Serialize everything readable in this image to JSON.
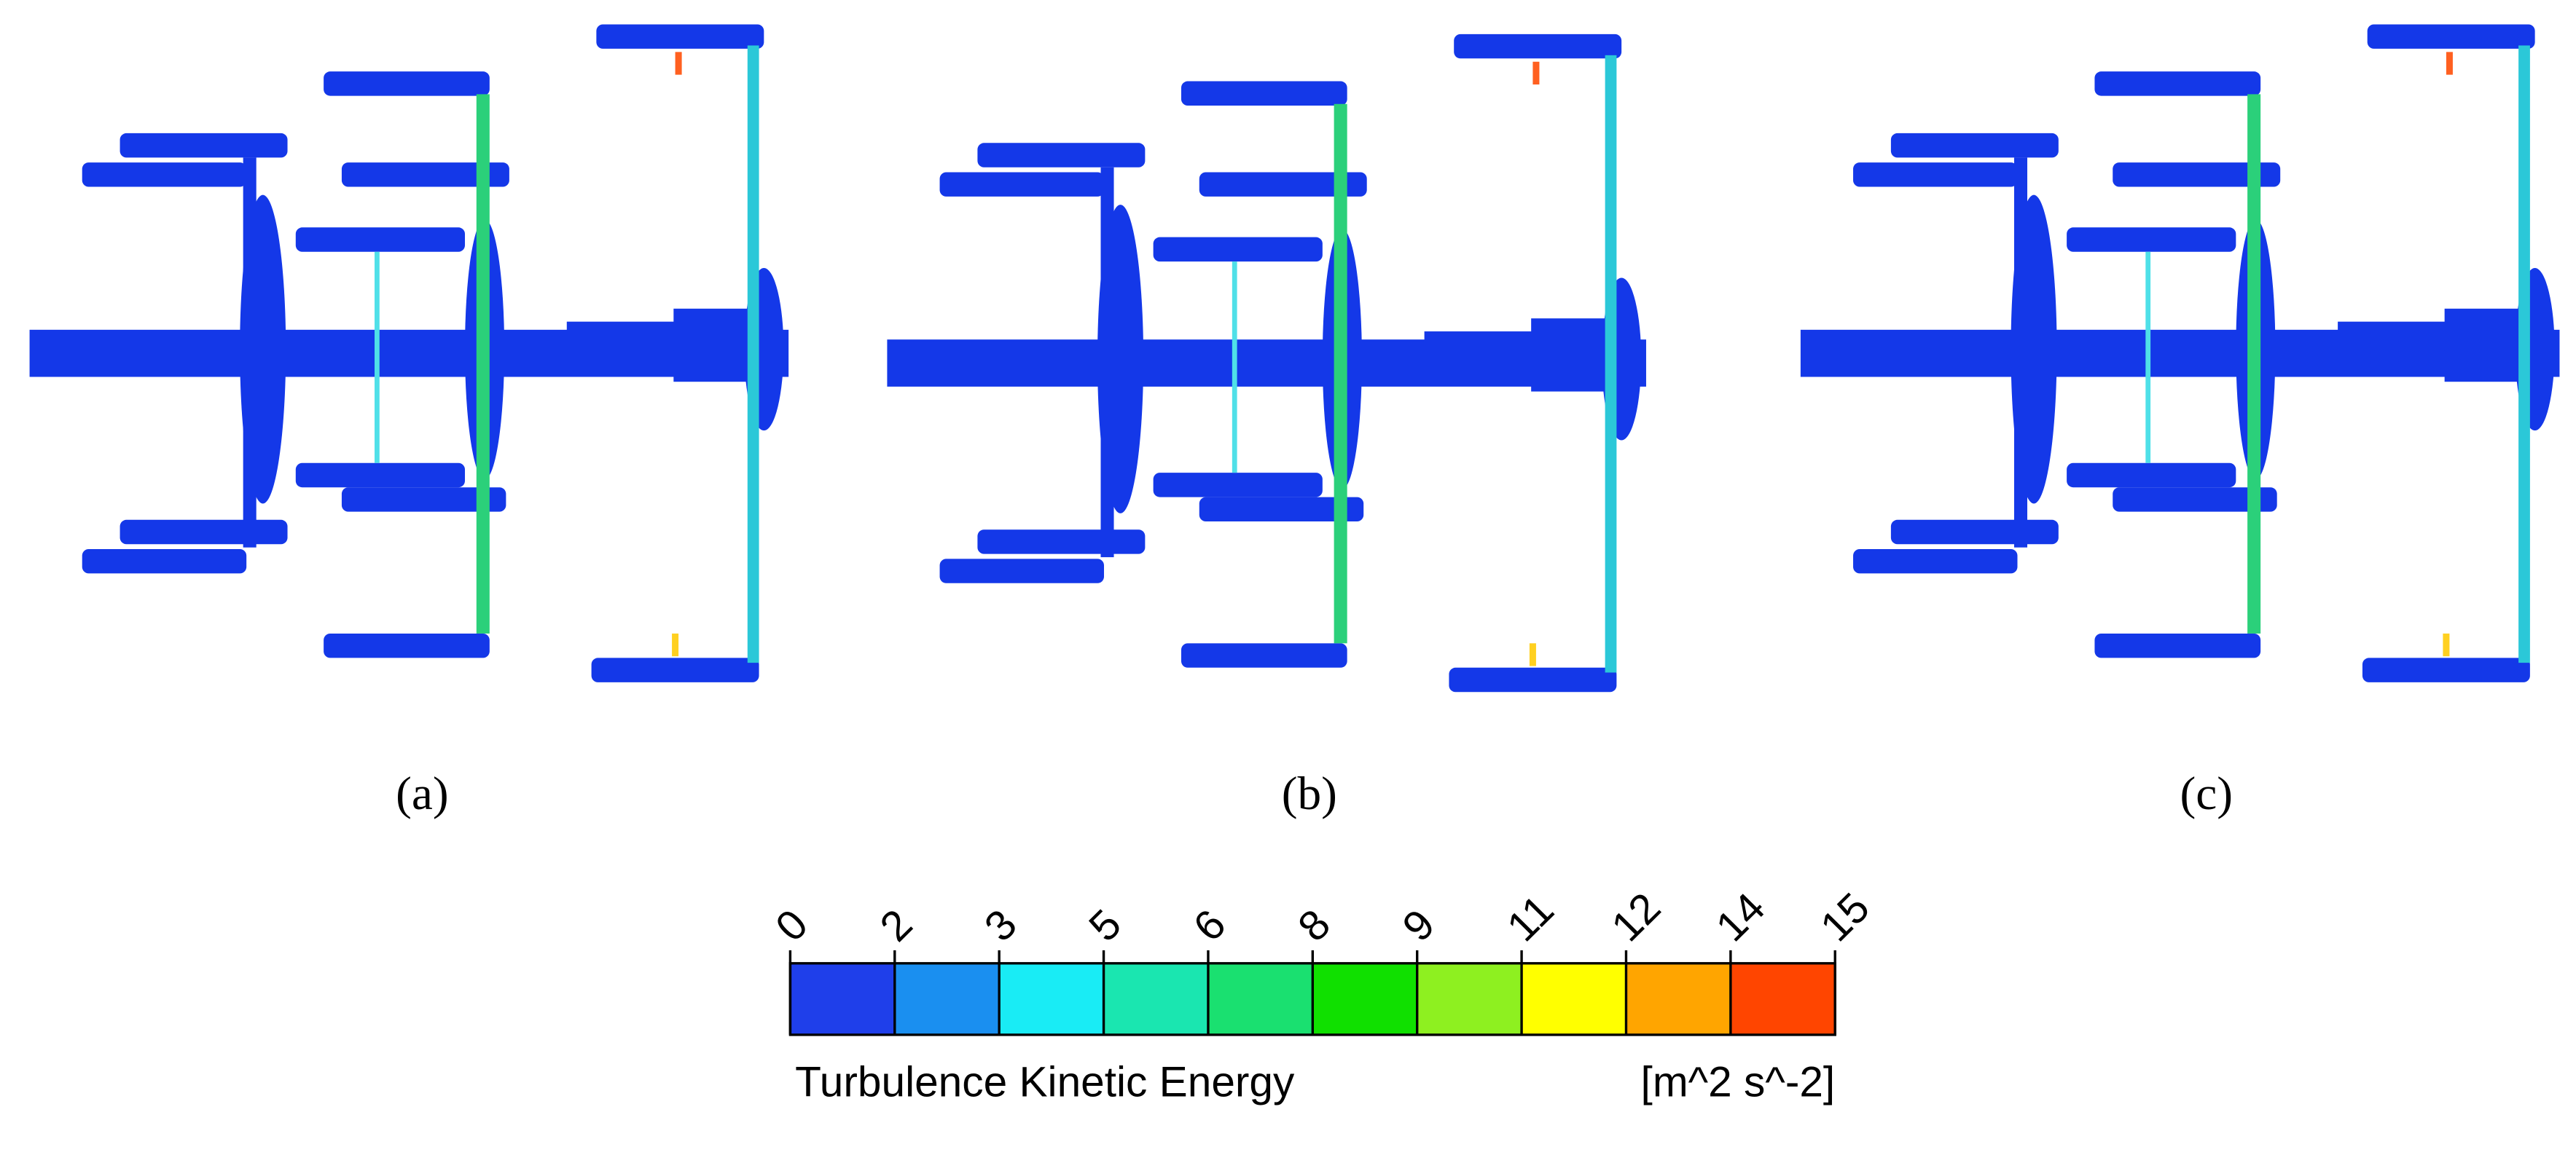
{
  "panels": [
    {
      "label": "(a)"
    },
    {
      "label": "(b)"
    },
    {
      "label": "(c)"
    }
  ],
  "colorbar": {
    "title": "Turbulence Kinetic Energy",
    "unit": "[m^2 s^-2]",
    "range": [
      0,
      15
    ],
    "ticks": [
      0,
      {
        "value": 1.5,
        "label": "2"
      },
      3,
      {
        "value": 4.5,
        "label": "5"
      },
      6,
      {
        "value": 7.5,
        "label": "8"
      },
      9,
      {
        "value": 10.5,
        "label": "11"
      },
      12,
      {
        "value": 13.5,
        "label": "14"
      },
      15
    ],
    "colors": [
      "#1f3fea",
      "#1a8ff0",
      "#19ecf5",
      "#1ae6b0",
      "#1ae070",
      "#10e000",
      "#8ef020",
      "#ffff00",
      "#ffa500",
      "#ff4500"
    ]
  }
}
